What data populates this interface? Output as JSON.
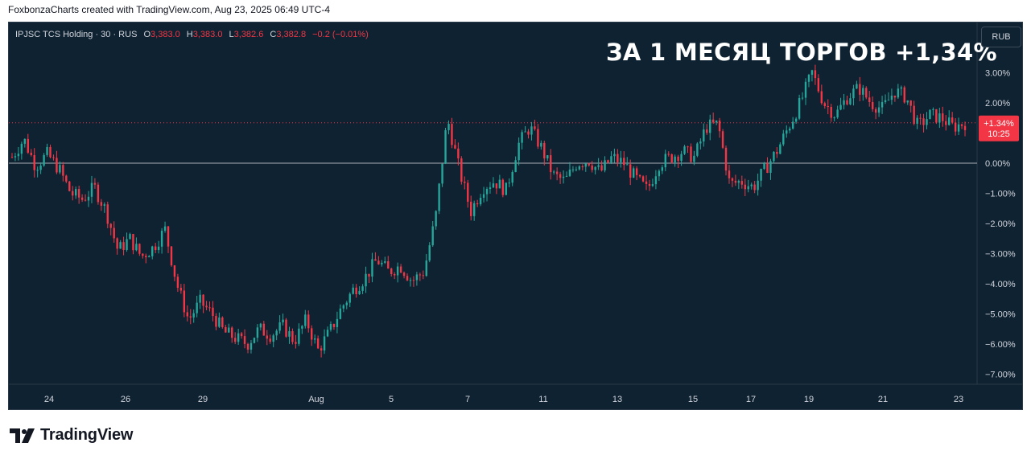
{
  "header": {
    "attribution": "FoxbonzaCharts created with TradingView.com, Aug 23, 2025 06:49 UTC-4"
  },
  "legend": {
    "symbol": "IPJSC TCS Holding · 30 · RUS",
    "open_label": "O",
    "open": "3,383.0",
    "high_label": "H",
    "high": "3,383.0",
    "low_label": "L",
    "low": "3,382.6",
    "close_label": "C",
    "close": "3,382.8",
    "change": "−0.2 (−0.01%)"
  },
  "headline": "ЗА 1 МЕСЯЦ ТОРГОВ +1,34%",
  "currency_button": "RUB",
  "footer": {
    "brand": "TradingView"
  },
  "colors": {
    "background": "#0f2231",
    "up": "#26a69a",
    "down": "#f23645",
    "axis_text": "#d1d4dc",
    "zero_line": "#d1d4dc"
  },
  "chart_data": {
    "type": "candlestick",
    "y_unit": "%",
    "ylim": [
      -7.5,
      3.5
    ],
    "y_ticks": [
      {
        "v": 3,
        "label": "3.00%"
      },
      {
        "v": 2,
        "label": "2.00%"
      },
      {
        "v": 1,
        "label": "1.00%"
      },
      {
        "v": 0,
        "label": "0.00%"
      },
      {
        "v": -1,
        "label": "−1.00%"
      },
      {
        "v": -2,
        "label": "−2.00%"
      },
      {
        "v": -3,
        "label": "−3.00%"
      },
      {
        "v": -4,
        "label": "−4.00%"
      },
      {
        "v": -5,
        "label": "−5.00%"
      },
      {
        "v": -6,
        "label": "−6.00%"
      },
      {
        "v": -7,
        "label": "−7.00%"
      }
    ],
    "x_ticks": [
      "24",
      "26",
      "29",
      "Aug",
      "5",
      "7",
      "11",
      "13",
      "15",
      "17",
      "19",
      "21",
      "23"
    ],
    "last_value": 1.34,
    "last_label": "+1.34%",
    "countdown": "10:25",
    "series_close_pct": [
      0.2,
      0.8,
      -0.1,
      0.3,
      -0.2,
      -1.0,
      -1.2,
      -0.8,
      -1.6,
      -2.9,
      -2.5,
      -3.1,
      -2.8,
      -2.2,
      -4.0,
      -5.2,
      -4.6,
      -5.0,
      -5.6,
      -5.8,
      -6.0,
      -5.5,
      -5.7,
      -5.4,
      -5.9,
      -5.2,
      -6.2,
      -5.6,
      -4.8,
      -4.2,
      -3.8,
      -3.2,
      -3.6,
      -3.4,
      -3.9,
      -3.6,
      -1.8,
      1.5,
      -0.2,
      -1.6,
      -0.8,
      -0.6,
      -0.9,
      0.6,
      1.2,
      0.5,
      -0.4,
      -0.6,
      0.0,
      0.1,
      -0.3,
      0.2,
      0.0,
      -0.5,
      -0.9,
      0.0,
      0.2,
      0.4,
      0.2,
      1.2,
      1.3,
      -0.7,
      -0.6,
      -0.8,
      -0.2,
      0.4,
      1.2,
      2.0,
      3.0,
      2.0,
      1.6,
      2.2,
      2.5,
      2.0,
      1.8,
      2.4,
      2.2,
      1.2,
      1.6,
      1.5,
      1.2,
      1.34
    ]
  }
}
